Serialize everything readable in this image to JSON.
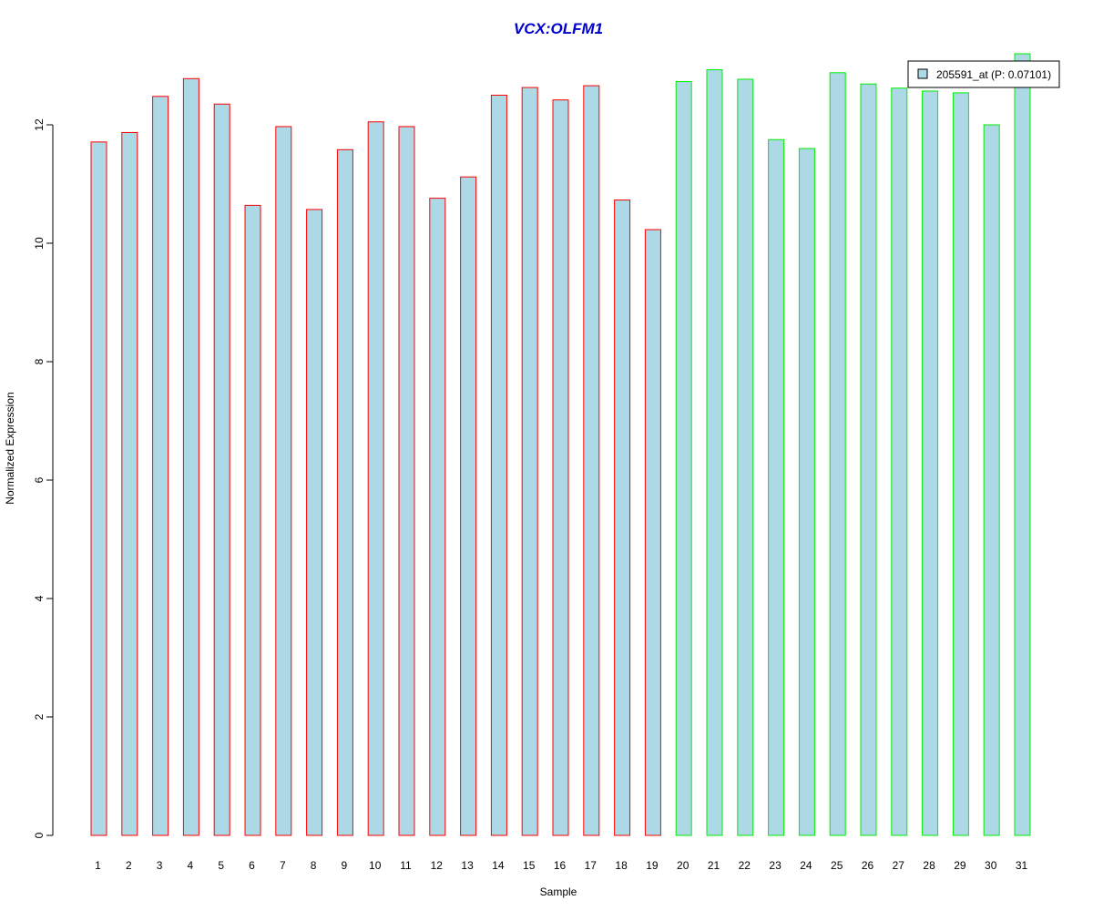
{
  "chart_data": {
    "type": "bar",
    "title": "VCX:OLFM1",
    "xlabel": "Sample",
    "ylabel": "Normalized Expression",
    "ylim": [
      0,
      13.2
    ],
    "y_ticks": [
      0,
      2,
      4,
      6,
      8,
      10,
      12
    ],
    "grid": false,
    "legend_position": "top-right",
    "categories": [
      "1",
      "2",
      "3",
      "4",
      "5",
      "6",
      "7",
      "8",
      "9",
      "10",
      "11",
      "12",
      "13",
      "14",
      "15",
      "16",
      "17",
      "18",
      "19",
      "20",
      "21",
      "22",
      "23",
      "24",
      "25",
      "26",
      "27",
      "28",
      "29",
      "30",
      "31"
    ],
    "series": [
      {
        "name": "205591_at (P: 0.07101)",
        "values": [
          11.71,
          11.87,
          12.48,
          12.78,
          12.35,
          10.64,
          11.97,
          10.57,
          11.58,
          12.05,
          11.97,
          10.76,
          11.12,
          12.5,
          12.63,
          12.42,
          12.66,
          10.73,
          10.23,
          12.73,
          12.93,
          12.77,
          11.75,
          11.6,
          12.88,
          12.69,
          12.62,
          12.57,
          12.54,
          12.0,
          13.2
        ]
      }
    ],
    "groups": [
      {
        "samples": [
          1,
          19
        ],
        "border_color": "#ff0000"
      },
      {
        "samples": [
          20,
          31
        ],
        "border_color": "#00ee00"
      }
    ],
    "colors": {
      "bar_fill": "#add8e6",
      "title": "#0000cd",
      "axis": "#000000"
    }
  }
}
